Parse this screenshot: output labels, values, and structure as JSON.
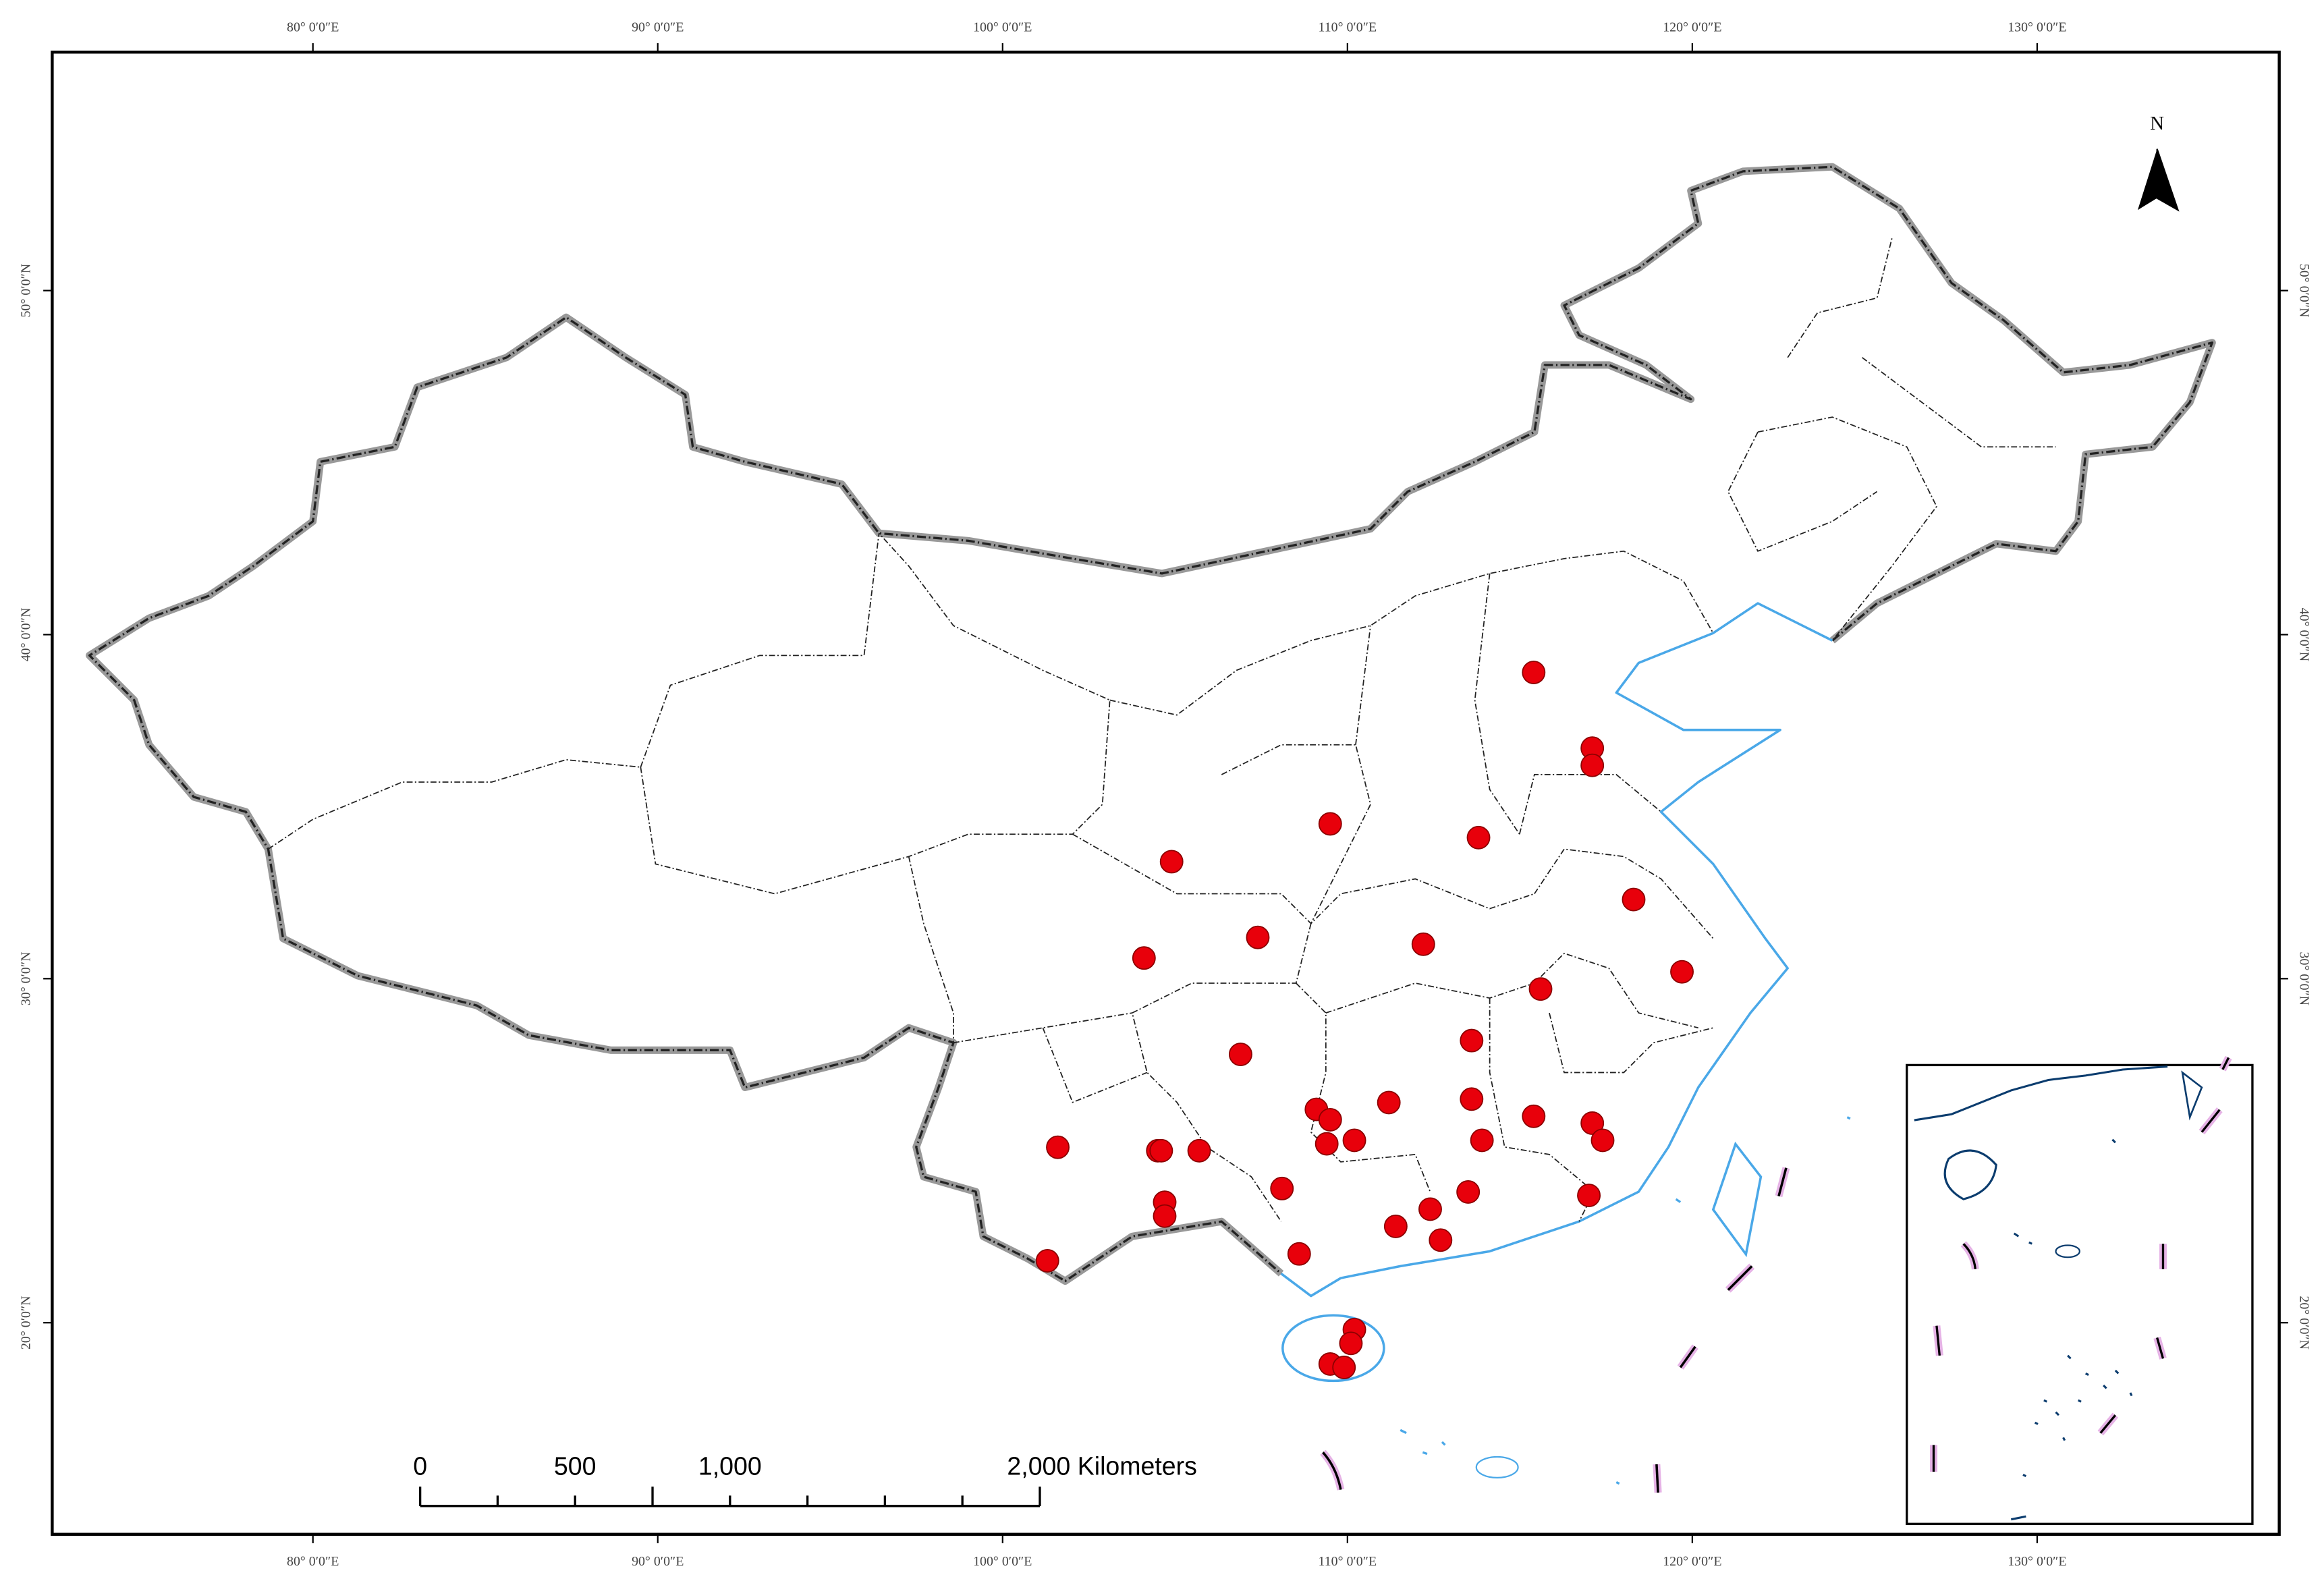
{
  "map": {
    "lonlim": [
      72.44,
      137.02
    ],
    "latlim": [
      13.85,
      56.93
    ],
    "lonticks": [
      {
        "value": 80,
        "label": "80° 0′0″E"
      },
      {
        "value": 90,
        "label": "90° 0′0″E"
      },
      {
        "value": 100,
        "label": "100° 0′0″E"
      },
      {
        "value": 110,
        "label": "110° 0′0″E"
      },
      {
        "value": 120,
        "label": "120° 0′0″E"
      },
      {
        "value": 130,
        "label": "130° 0′0″E"
      }
    ],
    "latticks": [
      {
        "value": 20,
        "label": "20° 0′0″N"
      },
      {
        "value": 30,
        "label": "30° 0′0″N"
      },
      {
        "value": 40,
        "label": "40° 0′0″N"
      },
      {
        "value": 50,
        "label": "50° 0′0″N"
      }
    ],
    "north": "N",
    "scale_bar": {
      "labels": [
        "0",
        "500",
        "1,000",
        "2,000 Kilometers"
      ]
    },
    "point_color": "#e8000b",
    "points": [
      {
        "lon": 115.4,
        "lat": 38.9
      },
      {
        "lon": 117.1,
        "lat": 36.7
      },
      {
        "lon": 117.1,
        "lat": 36.2
      },
      {
        "lon": 109.5,
        "lat": 34.5
      },
      {
        "lon": 113.8,
        "lat": 34.1
      },
      {
        "lon": 104.9,
        "lat": 33.4
      },
      {
        "lon": 118.3,
        "lat": 32.3
      },
      {
        "lon": 107.4,
        "lat": 31.2
      },
      {
        "lon": 112.2,
        "lat": 31.0
      },
      {
        "lon": 104.1,
        "lat": 30.6
      },
      {
        "lon": 119.7,
        "lat": 30.2
      },
      {
        "lon": 115.6,
        "lat": 29.7
      },
      {
        "lon": 113.6,
        "lat": 28.2
      },
      {
        "lon": 106.9,
        "lat": 27.8
      },
      {
        "lon": 113.6,
        "lat": 26.5
      },
      {
        "lon": 111.2,
        "lat": 26.4
      },
      {
        "lon": 109.1,
        "lat": 26.2
      },
      {
        "lon": 109.5,
        "lat": 25.9
      },
      {
        "lon": 115.4,
        "lat": 26.0
      },
      {
        "lon": 117.1,
        "lat": 25.8
      },
      {
        "lon": 117.4,
        "lat": 25.3
      },
      {
        "lon": 113.9,
        "lat": 25.3
      },
      {
        "lon": 109.4,
        "lat": 25.2
      },
      {
        "lon": 110.2,
        "lat": 25.3
      },
      {
        "lon": 101.6,
        "lat": 25.1
      },
      {
        "lon": 104.5,
        "lat": 25.0
      },
      {
        "lon": 104.6,
        "lat": 25.0
      },
      {
        "lon": 105.7,
        "lat": 25.0
      },
      {
        "lon": 108.1,
        "lat": 23.9
      },
      {
        "lon": 113.5,
        "lat": 23.8
      },
      {
        "lon": 117.0,
        "lat": 23.7
      },
      {
        "lon": 104.7,
        "lat": 23.5
      },
      {
        "lon": 104.7,
        "lat": 23.1
      },
      {
        "lon": 112.4,
        "lat": 23.3
      },
      {
        "lon": 111.4,
        "lat": 22.8
      },
      {
        "lon": 112.7,
        "lat": 22.4
      },
      {
        "lon": 108.6,
        "lat": 22.0
      },
      {
        "lon": 101.3,
        "lat": 21.8
      },
      {
        "lon": 110.2,
        "lat": 19.8
      },
      {
        "lon": 110.1,
        "lat": 19.4
      },
      {
        "lon": 109.5,
        "lat": 18.8
      },
      {
        "lon": 109.9,
        "lat": 18.7
      }
    ]
  }
}
